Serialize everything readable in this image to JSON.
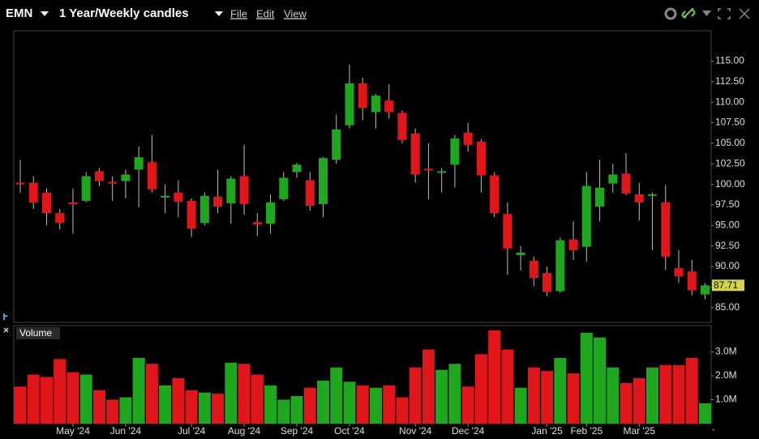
{
  "header": {
    "symbol": "EMN",
    "period": "1 Year/Weekly candles",
    "menu": [
      "File",
      "Edit",
      "View"
    ]
  },
  "chart_data": [
    {
      "type": "candlestick",
      "up_color": "#1fa81f",
      "down_color": "#e0161b",
      "categories": [
        null,
        null,
        null,
        null,
        "May '24",
        null,
        null,
        null,
        "Jun '24",
        null,
        null,
        null,
        null,
        "Jul '24",
        null,
        null,
        null,
        "Aug '24",
        null,
        null,
        null,
        "Sep '24",
        null,
        null,
        null,
        "Oct '24",
        null,
        null,
        null,
        null,
        "Nov '24",
        null,
        null,
        null,
        "Dec '24",
        null,
        null,
        null,
        null,
        null,
        "Jan '25",
        null,
        null,
        "Feb '25",
        null,
        null,
        null,
        "Mar '25",
        null,
        null,
        null,
        null,
        null
      ],
      "open": [
        100.2,
        100.2,
        99,
        96.5,
        97.8,
        98,
        101.6,
        100.3,
        100.4,
        101.8,
        102.7,
        98.5,
        99,
        98,
        95.3,
        98.5,
        97.7,
        101,
        95.4,
        95.2,
        98.2,
        101.5,
        100.5,
        97.6,
        103,
        107.2,
        112.3,
        108.8,
        110.2,
        108.7,
        106.2,
        101.9,
        101.6,
        102.4,
        106.3,
        105.2,
        101.1,
        96.4,
        91.4,
        90.7,
        89.2,
        87,
        93.3,
        92.4,
        97.3,
        100.1,
        101.3,
        98.8,
        98.6,
        97.8,
        89.8,
        89.4,
        86.6
      ],
      "high": [
        103,
        101,
        99.5,
        97,
        99.5,
        101.5,
        102,
        101,
        101.8,
        104.6,
        106,
        100,
        100.5,
        98.3,
        99,
        101.8,
        101,
        104.8,
        96.5,
        98.8,
        101.5,
        102.6,
        101.5,
        103.3,
        108.5,
        114.6,
        113,
        111,
        112.2,
        109,
        106.8,
        105,
        102,
        106,
        107.5,
        105.5,
        101.5,
        97.8,
        92.5,
        91.2,
        90,
        93.5,
        95.5,
        101.5,
        103,
        102.5,
        103.8,
        100.2,
        99,
        99.9,
        92,
        90.8,
        88
      ],
      "low": [
        99,
        97,
        95,
        94.5,
        94,
        97.8,
        99.8,
        98,
        98.3,
        97.2,
        99,
        96.5,
        96,
        93.6,
        95,
        96.5,
        95.2,
        96.3,
        93.7,
        94,
        98,
        100.8,
        96.8,
        96,
        102.5,
        106.8,
        107.8,
        106.8,
        108,
        105,
        100.2,
        98.2,
        99,
        99.6,
        104,
        99,
        96,
        89,
        89.5,
        87.6,
        86.4,
        86.8,
        90.8,
        90.6,
        95.5,
        99,
        98.7,
        95.6,
        92,
        89.6,
        88,
        86.5,
        86
      ],
      "close": [
        100,
        97.8,
        96.5,
        95.3,
        97.6,
        101,
        100.4,
        100.2,
        101.2,
        103.3,
        99.4,
        98.6,
        97.9,
        94.6,
        98.6,
        97.3,
        100.7,
        97.6,
        95.1,
        97.8,
        100.8,
        102.4,
        97.4,
        103.2,
        106.7,
        112.3,
        109.3,
        110.8,
        108.8,
        105.4,
        101.2,
        101.7,
        101.6,
        105.6,
        104.8,
        101.1,
        96.5,
        92.2,
        91.7,
        88.6,
        86.9,
        93.2,
        92,
        99.8,
        99.6,
        101.2,
        98.9,
        97.8,
        98.8,
        91.2,
        88.8,
        87.1,
        87.7
      ],
      "last_price": {
        "value": 87.71,
        "label": "87.71"
      },
      "ylim": [
        83.2,
        118.7
      ],
      "yticks": [
        {
          "value": 85,
          "label": "85.00"
        },
        {
          "value": 87.5,
          "label": "87.50"
        },
        {
          "value": 90,
          "label": "90.00"
        },
        {
          "value": 92.5,
          "label": "92.50"
        },
        {
          "value": 95,
          "label": "95.00"
        },
        {
          "value": 97.5,
          "label": "97.50"
        },
        {
          "value": 100,
          "label": "100.00"
        },
        {
          "value": 102.5,
          "label": "102.50"
        },
        {
          "value": 105,
          "label": "105.00"
        },
        {
          "value": 107.5,
          "label": "107.50"
        },
        {
          "value": 110,
          "label": "110.00"
        },
        {
          "value": 112.5,
          "label": "112.50"
        },
        {
          "value": 115,
          "label": "115.00"
        }
      ]
    },
    {
      "type": "bar",
      "title": "Volume",
      "values": [
        1.55,
        2.05,
        1.95,
        2.7,
        2.15,
        2.05,
        1.4,
        1.0,
        1.1,
        2.75,
        2.5,
        1.6,
        1.9,
        1.4,
        1.3,
        1.25,
        2.55,
        2.5,
        2.05,
        1.6,
        1.0,
        1.15,
        1.5,
        1.8,
        2.35,
        1.75,
        1.6,
        1.5,
        1.6,
        1.1,
        2.35,
        3.1,
        2.25,
        2.5,
        1.55,
        2.9,
        3.9,
        3.1,
        1.5,
        2.35,
        2.2,
        2.75,
        2.1,
        3.8,
        3.6,
        2.35,
        1.7,
        1.9,
        2.35,
        2.45,
        2.45,
        2.75,
        0.85
      ],
      "ylim": [
        0,
        4.1
      ],
      "yticks": [
        {
          "value": 1,
          "label": "1.0M"
        },
        {
          "value": 2,
          "label": "2.0M"
        },
        {
          "value": 3,
          "label": "3.0M"
        }
      ]
    }
  ]
}
